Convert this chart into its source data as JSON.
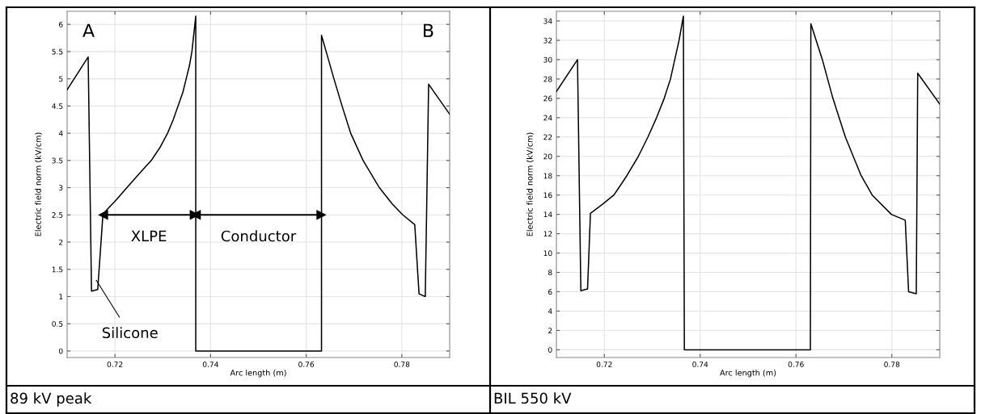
{
  "chart_data": [
    {
      "type": "line",
      "title": "89 kV peak",
      "xlabel": "Arc length (m)",
      "ylabel": "Electric field norm (kV/cm)",
      "series": [
        {
          "color": "#000000",
          "x": [
            0.71,
            0.7144,
            0.7151,
            0.7164,
            0.7175,
            0.72,
            0.7225,
            0.725,
            0.7276,
            0.7295,
            0.731,
            0.7322,
            0.7332,
            0.7342,
            0.7349,
            0.7356,
            0.7361,
            0.7369,
            0.7369,
            0.7632,
            0.7632,
            0.7645,
            0.7658,
            0.7675,
            0.7693,
            0.7719,
            0.7753,
            0.778,
            0.7802,
            0.7827,
            0.7836,
            0.7849,
            0.7856,
            0.79
          ],
          "values": [
            4.8,
            5.4,
            1.1,
            1.13,
            2.52,
            2.75,
            3.0,
            3.25,
            3.5,
            3.75,
            4.0,
            4.25,
            4.5,
            4.75,
            5.0,
            5.25,
            5.5,
            6.15,
            0,
            0,
            5.8,
            5.4,
            5.0,
            4.5,
            4.0,
            3.5,
            3.0,
            2.7,
            2.5,
            2.32,
            1.05,
            1.0,
            4.9,
            4.35
          ]
        },
        {
          "color": "#000000",
          "marker": "triangle",
          "x": [
            0.7175,
            0.7367
          ],
          "values": [
            2.5,
            2.5
          ]
        },
        {
          "color": "#000000",
          "marker": "triangle",
          "x": [
            0.7369,
            0.7632
          ],
          "values": [
            2.5,
            2.5
          ]
        }
      ],
      "xlim": [
        0.71,
        0.79
      ],
      "xticks": [
        0.72,
        0.74,
        0.76,
        0.78
      ],
      "ylim": [
        -0.12,
        6.24
      ],
      "yticks": [
        0,
        0.5,
        1,
        1.5,
        2,
        2.5,
        3,
        3.5,
        4,
        4.5,
        5,
        5.5,
        6
      ],
      "grid": true,
      "annotations": [
        "A",
        "B",
        {
          "text": "Silicone",
          "x": 0.7161,
          "y": 1.3
        },
        {
          "text": "XLPE",
          "x": 0.7271,
          "y": 2.5
        },
        {
          "text": "Conductor",
          "x": 0.75,
          "y": 2.5
        }
      ]
    },
    {
      "type": "line",
      "title": "BIL 550 kV",
      "xlabel": "Arc length (m)",
      "ylabel": "Electric field norm (kV/cm)",
      "series": [
        {
          "color": "#000000",
          "x": [
            0.71,
            0.7144,
            0.7151,
            0.7165,
            0.7171,
            0.7195,
            0.722,
            0.7247,
            0.7271,
            0.7291,
            0.7309,
            0.7325,
            0.7338,
            0.7356,
            0.7365,
            0.7367,
            0.763,
            0.7631,
            0.7655,
            0.7677,
            0.7703,
            0.7736,
            0.7759,
            0.7799,
            0.7828,
            0.7835,
            0.7851,
            0.7854,
            0.79
          ],
          "values": [
            26.7,
            30.0,
            6.1,
            6.3,
            14.1,
            15.0,
            16,
            18,
            20,
            22,
            24,
            26,
            28,
            32,
            34.5,
            0,
            0,
            33.7,
            30,
            26,
            22,
            18,
            16,
            14,
            13.4,
            6.0,
            5.8,
            28.6,
            25.4
          ]
        }
      ],
      "xlim": [
        0.71,
        0.79
      ],
      "xticks": [
        0.72,
        0.74,
        0.76,
        0.78
      ],
      "ylim": [
        -0.8,
        35
      ],
      "yticks": [
        0,
        2,
        4,
        6,
        8,
        10,
        12,
        14,
        16,
        18,
        20,
        22,
        24,
        26,
        28,
        30,
        32,
        34
      ],
      "grid": true
    }
  ]
}
